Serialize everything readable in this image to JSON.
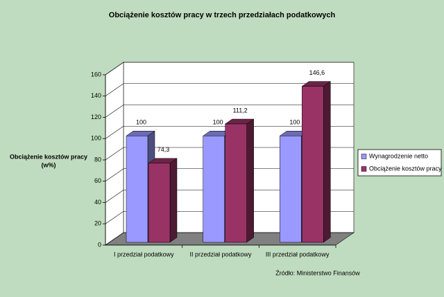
{
  "chart_data": {
    "type": "bar3d",
    "title": "Obciążenie kosztów pracy w trzech przedziałach podatkowych",
    "y_label": [
      "Obciążenie kosztów  pracy",
      "(w%)"
    ],
    "categories": [
      "I przedział podatkowy",
      "II przedział podatkowy",
      "III przedział podatkowy"
    ],
    "series": [
      {
        "name": "Wynagrodzenie netto",
        "color": "#9999ff",
        "values": [
          100,
          100,
          100
        ]
      },
      {
        "name": "Obciążenie kosztów pracy",
        "color": "#993366",
        "values": [
          74.3,
          111.2,
          146.6
        ],
        "value_labels": [
          "74,3",
          "111,2",
          "146,6"
        ]
      }
    ],
    "ylim": [
      0,
      160
    ],
    "yticks": [
      0,
      20,
      40,
      60,
      80,
      100,
      120,
      140,
      160
    ],
    "grid": true,
    "legend": "right",
    "source": "Źródło: Ministerstwo Finansów"
  }
}
